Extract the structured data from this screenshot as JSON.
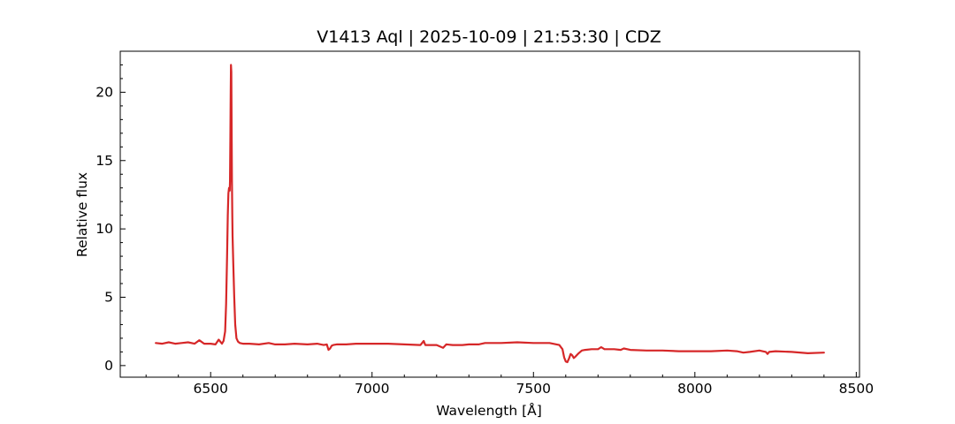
{
  "chart_data": {
    "type": "line",
    "title": "V1413 Aql | 2025-10-09 | 21:53:30 | CDZ",
    "xlabel": "Wavelength [Å]",
    "ylabel": "Relative flux",
    "xlim": [
      6220,
      8510
    ],
    "ylim": [
      -0.85,
      23.0
    ],
    "xticks": [
      6500,
      7000,
      7500,
      8000,
      8500
    ],
    "yticks": [
      0,
      5,
      10,
      15,
      20
    ],
    "x_minor_step": 100,
    "y_minor_step": 1,
    "grid": false,
    "line_color": "#d62728",
    "series": [
      {
        "x": [
          6330,
          6350,
          6370,
          6390,
          6410,
          6430,
          6450,
          6465,
          6480,
          6500,
          6515,
          6525,
          6535,
          6540,
          6545,
          6548,
          6551,
          6553,
          6555,
          6557,
          6559,
          6560,
          6561,
          6562,
          6563,
          6564,
          6565,
          6566,
          6567,
          6568,
          6570,
          6573,
          6576,
          6580,
          6585,
          6590,
          6600,
          6620,
          6650,
          6680,
          6700,
          6730,
          6760,
          6800,
          6830,
          6850,
          6860,
          6865,
          6870,
          6875,
          6880,
          6890,
          6920,
          6950,
          7000,
          7050,
          7100,
          7150,
          7160,
          7165,
          7170,
          7200,
          7220,
          7230,
          7250,
          7280,
          7300,
          7330,
          7350,
          7400,
          7450,
          7500,
          7550,
          7580,
          7590,
          7595,
          7600,
          7605,
          7610,
          7615,
          7620,
          7625,
          7630,
          7640,
          7650,
          7660,
          7680,
          7700,
          7710,
          7720,
          7750,
          7770,
          7780,
          7800,
          7850,
          7900,
          7950,
          8000,
          8050,
          8100,
          8130,
          8150,
          8170,
          8200,
          8220,
          8225,
          8230,
          8250,
          8300,
          8350,
          8400
        ],
        "y": [
          1.65,
          1.6,
          1.7,
          1.6,
          1.65,
          1.7,
          1.6,
          1.85,
          1.6,
          1.6,
          1.55,
          1.9,
          1.6,
          1.8,
          2.5,
          4.5,
          8.0,
          11.0,
          12.6,
          13.0,
          12.8,
          13.5,
          16.5,
          20.0,
          22.0,
          21.5,
          18.0,
          13.5,
          11.0,
          9.5,
          7.5,
          5.0,
          3.0,
          2.0,
          1.75,
          1.65,
          1.6,
          1.6,
          1.55,
          1.65,
          1.55,
          1.55,
          1.6,
          1.55,
          1.6,
          1.5,
          1.55,
          1.15,
          1.25,
          1.45,
          1.5,
          1.55,
          1.55,
          1.6,
          1.6,
          1.6,
          1.55,
          1.5,
          1.8,
          1.5,
          1.5,
          1.5,
          1.3,
          1.55,
          1.5,
          1.5,
          1.55,
          1.55,
          1.65,
          1.65,
          1.7,
          1.65,
          1.65,
          1.5,
          1.2,
          0.6,
          0.3,
          0.25,
          0.5,
          0.85,
          0.75,
          0.55,
          0.65,
          0.9,
          1.1,
          1.15,
          1.2,
          1.2,
          1.35,
          1.2,
          1.2,
          1.15,
          1.25,
          1.15,
          1.1,
          1.1,
          1.05,
          1.05,
          1.05,
          1.1,
          1.05,
          0.95,
          1.0,
          1.1,
          1.0,
          0.85,
          1.0,
          1.05,
          1.0,
          0.9,
          0.95
        ]
      }
    ]
  }
}
